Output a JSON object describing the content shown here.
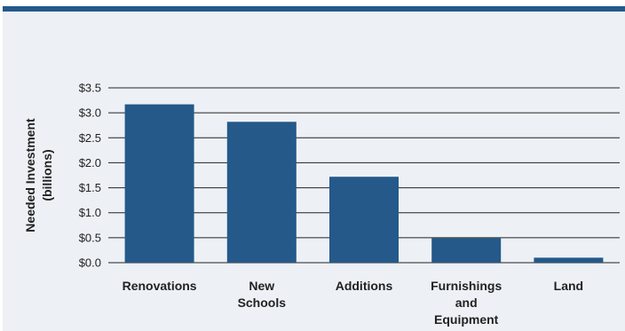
{
  "chart_data": {
    "type": "bar",
    "title": "",
    "xlabel": "",
    "ylabel": [
      "Needed Investment",
      "(billions)"
    ],
    "categories": [
      [
        "Renovations"
      ],
      [
        "New",
        "Schools"
      ],
      [
        "Additions"
      ],
      [
        "Furnishings",
        "and",
        "Equipment"
      ],
      [
        "Land"
      ]
    ],
    "values": [
      3.17,
      2.82,
      1.72,
      0.49,
      0.1
    ],
    "ylim": [
      0,
      3.5
    ],
    "yticks": [
      0,
      0.5,
      1.0,
      1.5,
      2.0,
      2.5,
      3.0,
      3.5
    ],
    "ytick_labels": [
      "$0.0",
      "$0.5",
      "$1.0",
      "$1.5",
      "$2.0",
      "$2.5",
      "$3.0",
      "$3.5"
    ],
    "grid": true,
    "legend": "none",
    "colors": {
      "bar": "#24598a",
      "panel": "#edf1f6",
      "top_rule": "#24598a",
      "gridline": "#222222"
    }
  }
}
